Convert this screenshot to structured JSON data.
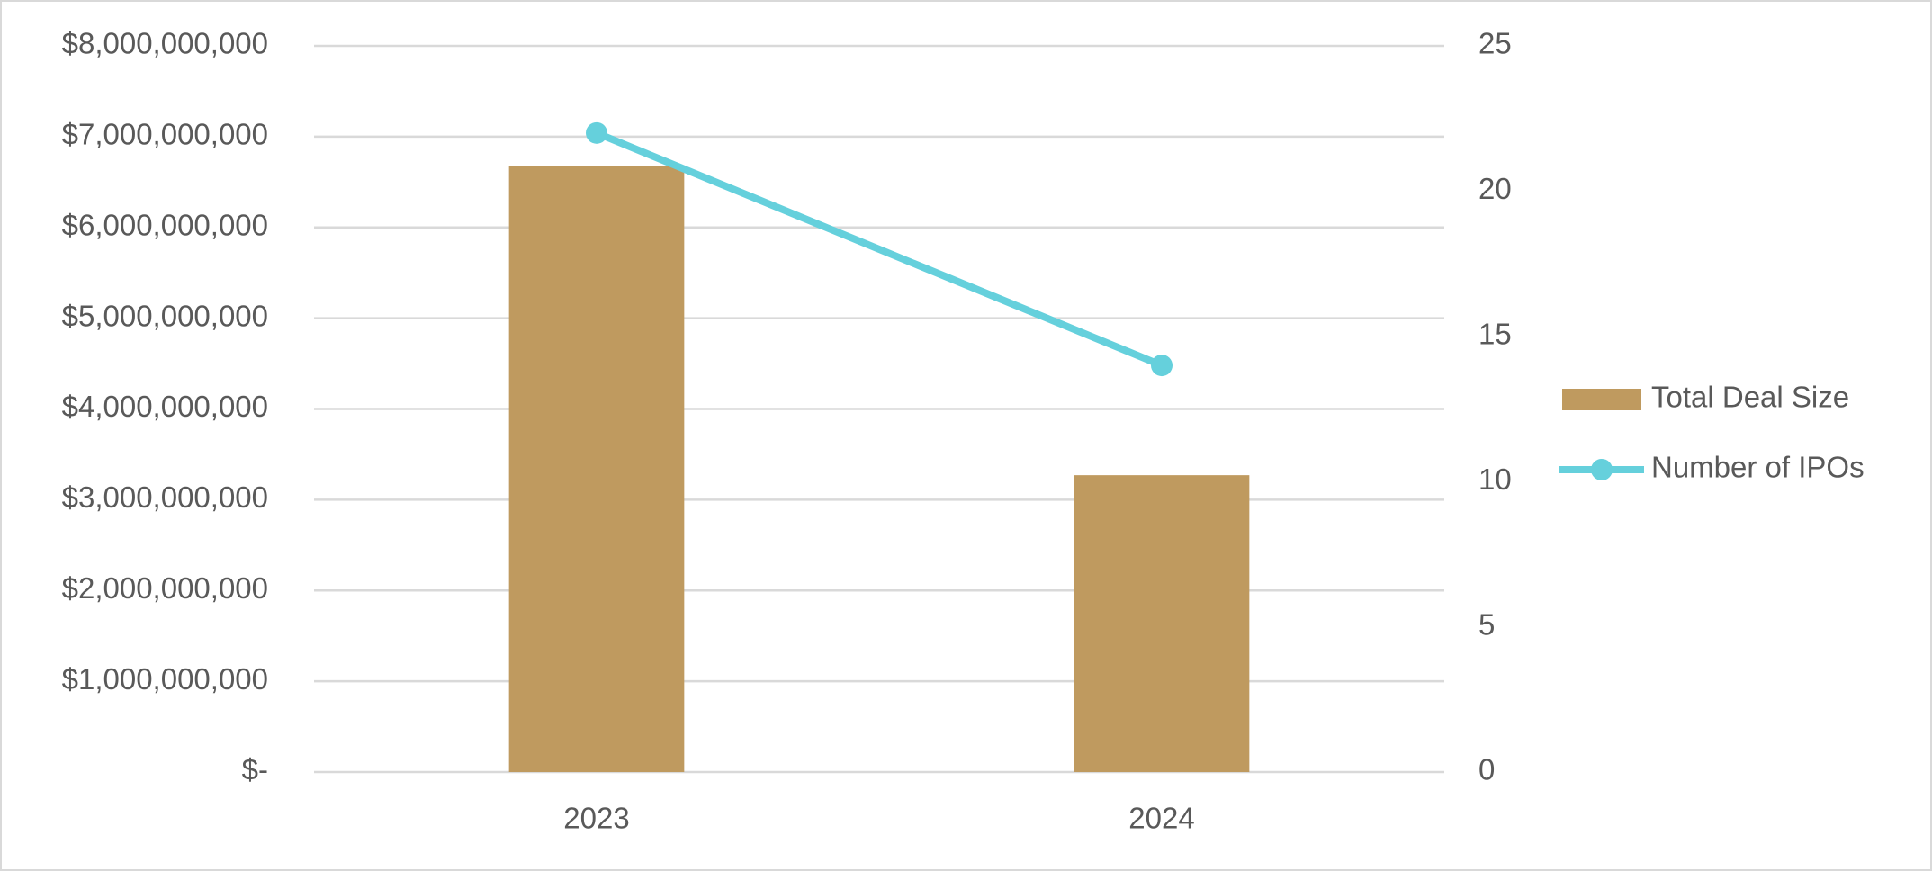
{
  "chart_data": {
    "type": "combo",
    "categories": [
      "2023",
      "2024"
    ],
    "series": [
      {
        "name": "Total Deal Size",
        "type": "bar",
        "color": "#bf9a5f",
        "values": [
          6680000000,
          3270000000
        ]
      },
      {
        "name": "Number of IPOs",
        "type": "line",
        "axis": "y2",
        "color": "#65d0dc",
        "values": [
          22,
          14
        ]
      }
    ],
    "ylim": [
      0,
      8000000000
    ],
    "yticks": [
      {
        "value": 0,
        "label": "$-"
      },
      {
        "value": 1000000000,
        "label": "$1,000,000,000"
      },
      {
        "value": 2000000000,
        "label": "$2,000,000,000"
      },
      {
        "value": 3000000000,
        "label": "$3,000,000,000"
      },
      {
        "value": 4000000000,
        "label": "$4,000,000,000"
      },
      {
        "value": 5000000000,
        "label": "$5,000,000,000"
      },
      {
        "value": 6000000000,
        "label": "$6,000,000,000"
      },
      {
        "value": 7000000000,
        "label": "$7,000,000,000"
      },
      {
        "value": 8000000000,
        "label": "$8,000,000,000"
      }
    ],
    "y2lim": [
      0,
      25
    ],
    "y2ticks": [
      0,
      5,
      10,
      15,
      20,
      25
    ],
    "grid": true,
    "legend": "right"
  }
}
